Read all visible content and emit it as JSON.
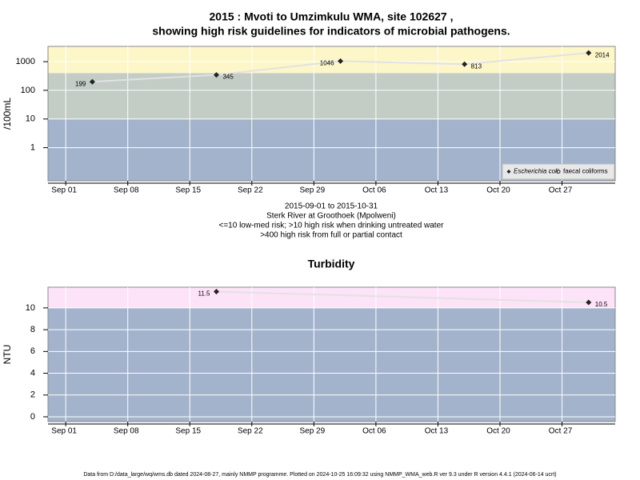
{
  "chart_data": [
    {
      "type": "line",
      "title": [
        "2015 : Mvoti to Umzimkulu WMA, site 102627 ,",
        "showing high risk guidelines for indicators of microbial pathogens."
      ],
      "ylabel": "/100mL",
      "log_y": true,
      "ylim": [
        0.07,
        3400
      ],
      "yticks": [
        1,
        10,
        100,
        1000
      ],
      "xlim": [
        "Aug 30",
        "Nov 02"
      ],
      "xticks": [
        "Sep 01",
        "Sep 08",
        "Sep 15",
        "Sep 22",
        "Sep 29",
        "Oct 06",
        "Oct 13",
        "Oct 20",
        "Oct 27"
      ],
      "grid": true,
      "bands": [
        {
          "to": 10,
          "color": "#a3b3cc"
        },
        {
          "to": 400,
          "color": "#c3ccc5"
        },
        {
          "color": "#fdf6c9"
        }
      ],
      "legend": "bottom right",
      "line_color": "#e2e2e2",
      "series": [
        {
          "name": "Escherichia coli",
          "marker": "diamond",
          "color": "#222222",
          "x": [
            "Sep 04",
            "Sep 18",
            "Oct 02",
            "Oct 16",
            "Oct 30"
          ],
          "values": [
            199,
            345,
            1046,
            813,
            2014
          ]
        },
        {
          "name": "faecal coliforms",
          "marker": "circle",
          "color": "#222222",
          "x": [],
          "values": []
        }
      ],
      "notes": [
        "2015-09-01 to 2015-10-31",
        "Sterk River at Groothoek (Mpolweni)",
        "<=10 low-med risk; >10 high risk when drinking untreated water",
        ">400 high risk from full or partial contact"
      ]
    },
    {
      "type": "line",
      "title": [
        "Turbidity"
      ],
      "ylabel": "NTU",
      "log_y": false,
      "ylim": [
        -0.44,
        11.9
      ],
      "yticks": [
        0,
        2,
        4,
        6,
        8,
        10
      ],
      "xlim": [
        "Aug 30",
        "Nov 02"
      ],
      "xticks": [
        "Sep 01",
        "Sep 08",
        "Sep 15",
        "Sep 22",
        "Sep 29",
        "Oct 06",
        "Oct 13",
        "Oct 20",
        "Oct 27"
      ],
      "grid": true,
      "bands": [
        {
          "to": 10,
          "color": "#a3b3cc"
        },
        {
          "color": "#fde3f8"
        }
      ],
      "line_color": "#e2e2e2",
      "series": [
        {
          "name": "Turbidity",
          "marker": "diamond",
          "color": "#222222",
          "x": [
            "Sep 18",
            "Oct 30"
          ],
          "values": [
            11.5,
            10.5
          ]
        }
      ]
    }
  ],
  "footer": "Data from D:/data_large/wq/wms.db dated 2024-08-27, mainly NMMP programme. Plotted on 2024-10-25 16:09:32 using NMMP_WMA_web.R ver 9.3 under R version 4.4.1 (2024-06-14 ucrt)"
}
